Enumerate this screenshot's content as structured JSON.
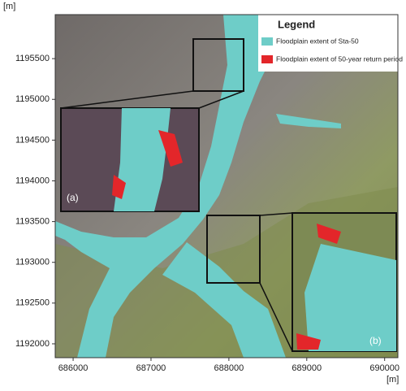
{
  "map": {
    "y_unit": "[m]",
    "x_unit": "[m]",
    "xlim": [
      685770,
      690170
    ],
    "ylim": [
      1191830,
      1196040
    ],
    "xticks": [
      686000,
      687000,
      688000,
      689000,
      690000
    ],
    "yticks": [
      1192000,
      1192500,
      1193000,
      1193500,
      1194000,
      1194500,
      1195000,
      1195500
    ],
    "legend": {
      "title": "Legend",
      "entries": [
        {
          "label": "Floodplain extent of Sta-50",
          "color": "#6ecdc8"
        },
        {
          "label": "Floodplain extent of 50-year return period",
          "color": "#e3262a"
        }
      ]
    },
    "insets": [
      {
        "label": "(a)"
      },
      {
        "label": "(b)"
      }
    ]
  }
}
